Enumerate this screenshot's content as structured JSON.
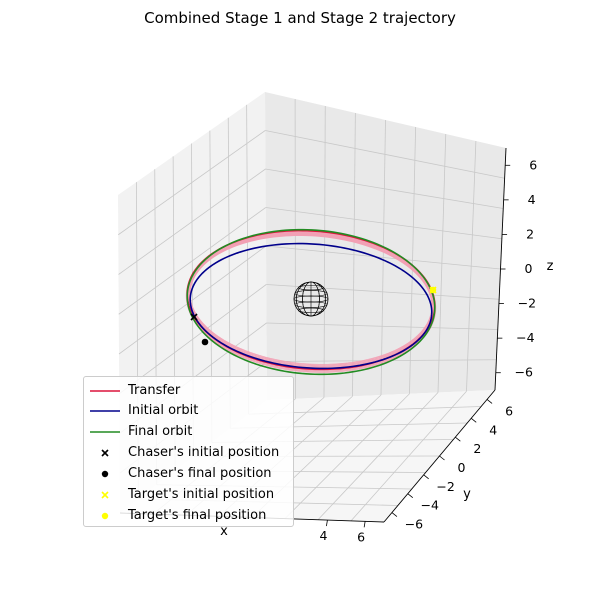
{
  "chart_data": {
    "type": "line3d",
    "title": "Combined Stage 1 and Stage 2 trajectory",
    "xlabel": "x",
    "ylabel": "y",
    "zlabel": "z",
    "xticks": [
      4,
      6
    ],
    "yticks": [
      -6,
      -4,
      -2,
      0,
      2,
      4,
      6
    ],
    "zticks": [
      -6,
      -4,
      -2,
      0,
      2,
      4,
      6
    ],
    "xlim": [
      -7,
      7
    ],
    "ylim": [
      -7,
      7
    ],
    "zlim": [
      -7,
      7
    ],
    "grid": true,
    "legend_location": "lower-left",
    "series": [
      {
        "name": "Transfer",
        "type": "line",
        "color": "#dc143c",
        "radius": [
          6.85,
          7.0
        ],
        "revolutions": 4
      },
      {
        "name": "Initial orbit",
        "type": "line",
        "color": "#00008b",
        "radius": 6.7
      },
      {
        "name": "Final orbit",
        "type": "line",
        "color": "#228b22",
        "radius": 7.0
      },
      {
        "name": "Chaser's initial position",
        "type": "scatter",
        "marker": "x",
        "color": "#000000",
        "point": [
          -5.1,
          -4.7,
          0
        ]
      },
      {
        "name": "Chaser's final position",
        "type": "scatter",
        "marker": "o",
        "color": "#000000",
        "point": [
          -3.9,
          -5.8,
          0
        ]
      },
      {
        "name": "Target's initial position",
        "type": "scatter",
        "marker": "x",
        "color": "#ffff00",
        "point": [
          6.6,
          2.2,
          0
        ]
      },
      {
        "name": "Target's final position",
        "type": "scatter",
        "marker": "o",
        "color": "#ffff00",
        "point": [
          6.6,
          2.2,
          0
        ]
      }
    ],
    "central_body": {
      "shape": "wireframe-sphere",
      "radius": 1.0,
      "color": "#000000"
    }
  }
}
